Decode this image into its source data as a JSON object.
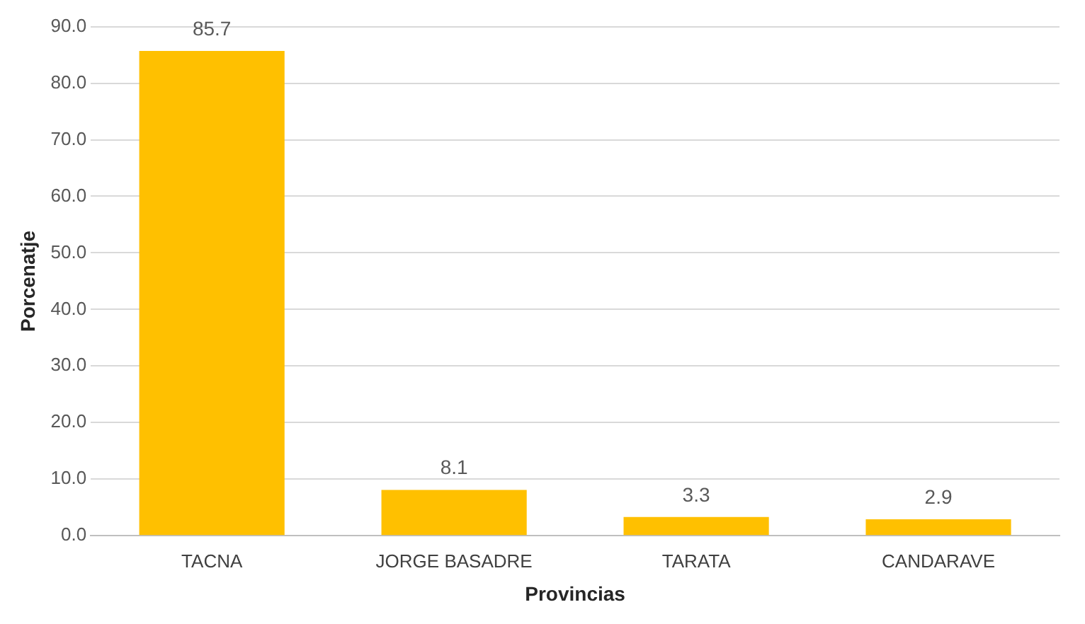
{
  "chart_data": {
    "type": "bar",
    "xlabel": "Provincias",
    "ylabel": "Porcenatje",
    "categories": [
      "TACNA",
      "JORGE BASADRE",
      "TARATA",
      "CANDARAVE"
    ],
    "values": [
      85.7,
      8.1,
      3.3,
      2.9
    ],
    "color": "#ffc000",
    "ylim": [
      0,
      90
    ],
    "yticks": [
      {
        "value": 0,
        "label": "0.0"
      },
      {
        "value": 10,
        "label": "10.0"
      },
      {
        "value": 20,
        "label": "20.0"
      },
      {
        "value": 30,
        "label": "30.0"
      },
      {
        "value": 40,
        "label": "40.0"
      },
      {
        "value": 50,
        "label": "50.0"
      },
      {
        "value": 60,
        "label": "60.0"
      },
      {
        "value": 70,
        "label": "70.0"
      },
      {
        "value": 80,
        "label": "80.0"
      },
      {
        "value": 90,
        "label": "90.0"
      }
    ],
    "grid": "y",
    "data_labels": true,
    "legend": false
  }
}
